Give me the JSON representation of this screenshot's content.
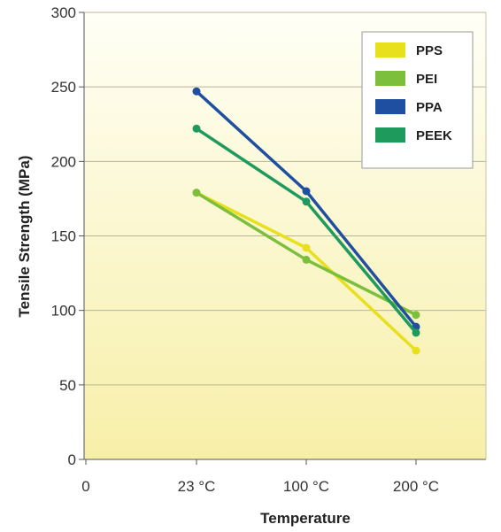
{
  "chart_data": {
    "type": "line",
    "title": "",
    "xlabel": "Temperature",
    "ylabel": "Tensile Strength (MPa)",
    "x_tick_labels": [
      "0",
      "23 °C",
      "100 °C",
      "200 °C"
    ],
    "categories": [
      "23 °C",
      "100 °C",
      "200 °C"
    ],
    "ylim": [
      0,
      300
    ],
    "y_ticks": [
      0,
      50,
      100,
      150,
      200,
      250,
      300
    ],
    "grid": true,
    "legend_position": "top-right",
    "series": [
      {
        "name": "PPS",
        "color": "#e8e01c",
        "values": [
          179,
          142,
          73
        ]
      },
      {
        "name": "PEI",
        "color": "#7cbf3c",
        "values": [
          179,
          134,
          97
        ]
      },
      {
        "name": "PPA",
        "color": "#1f4fa0",
        "values": [
          247,
          180,
          89
        ]
      },
      {
        "name": "PEEK",
        "color": "#1e9a5c",
        "values": [
          222,
          173,
          85
        ]
      }
    ]
  }
}
